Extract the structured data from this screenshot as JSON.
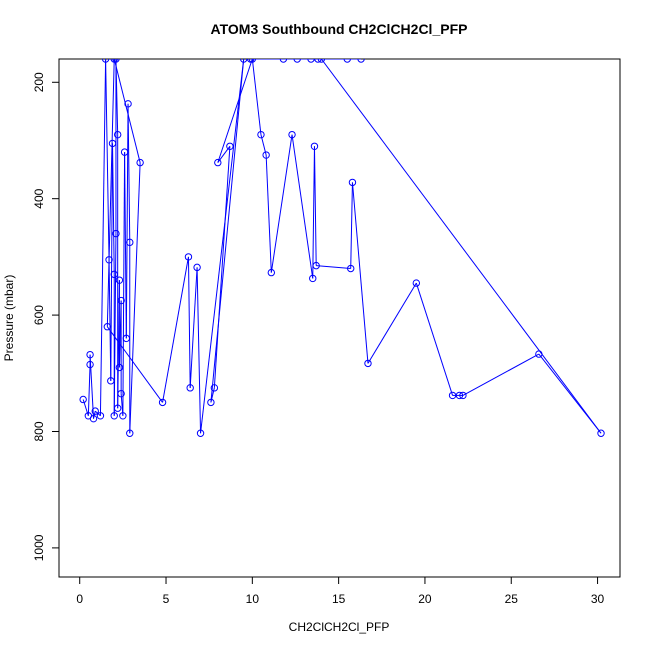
{
  "chart_data": {
    "type": "line",
    "title": "ATOM3 Southbound CH2ClCH2Cl_PFP",
    "xlabel": "CH2ClCH2Cl_PFP",
    "ylabel": "Pressure (mbar)",
    "xlim": [
      -1.2,
      31.3
    ],
    "ylim": [
      1050,
      160
    ],
    "y_reversed": true,
    "x_ticks": [
      0,
      5,
      10,
      15,
      20,
      25,
      30
    ],
    "y_ticks": [
      200,
      400,
      600,
      800,
      1000
    ],
    "grid": false,
    "legend": "none",
    "color": "#0000ff",
    "series": [
      {
        "points": [
          [
            0.2,
            745
          ],
          [
            0.5,
            773
          ],
          [
            0.6,
            685
          ],
          [
            0.6,
            668
          ],
          [
            0.8,
            778
          ],
          [
            0.9,
            765
          ],
          [
            1.2,
            773
          ],
          [
            1.5,
            160
          ],
          [
            1.7,
            505
          ],
          [
            1.8,
            713
          ],
          [
            1.9,
            305
          ],
          [
            2.0,
            530
          ],
          [
            2.0,
            773
          ],
          [
            2.1,
            460
          ],
          [
            2.1,
            160
          ],
          [
            2.2,
            290
          ],
          [
            2.2,
            760
          ],
          [
            2.3,
            540
          ],
          [
            2.3,
            690
          ],
          [
            2.4,
            575
          ],
          [
            2.4,
            735
          ],
          [
            2.5,
            773
          ],
          [
            2.6,
            320
          ],
          [
            2.7,
            640
          ],
          [
            2.8,
            237
          ],
          [
            2.9,
            475
          ],
          [
            2.9,
            803
          ],
          [
            3.5,
            338
          ],
          [
            2.0,
            160
          ],
          [
            1.6,
            620
          ],
          [
            4.8,
            750
          ],
          [
            6.3,
            500
          ],
          [
            6.4,
            725
          ],
          [
            6.8,
            518
          ],
          [
            7.0,
            803
          ],
          [
            9.5,
            160
          ],
          [
            7.6,
            750
          ],
          [
            7.8,
            725
          ],
          [
            8.7,
            310
          ],
          [
            8.0,
            338
          ],
          [
            10.0,
            160
          ],
          [
            10.5,
            290
          ],
          [
            10.8,
            325
          ],
          [
            11.1,
            527
          ],
          [
            12.3,
            290
          ],
          [
            13.5,
            537
          ],
          [
            13.6,
            310
          ],
          [
            13.7,
            515
          ],
          [
            15.7,
            520
          ],
          [
            15.8,
            372
          ],
          [
            16.7,
            683
          ],
          [
            19.5,
            545
          ],
          [
            21.6,
            738
          ],
          [
            22.0,
            738
          ],
          [
            22.2,
            738
          ],
          [
            26.6,
            667
          ],
          [
            30.2,
            803
          ],
          [
            14.0,
            160
          ],
          [
            11.8,
            160
          ],
          [
            12.6,
            160
          ],
          [
            9.9,
            160
          ],
          [
            13.8,
            160
          ],
          [
            15.5,
            160
          ],
          [
            13.4,
            160
          ],
          [
            16.3,
            160
          ]
        ]
      }
    ]
  }
}
